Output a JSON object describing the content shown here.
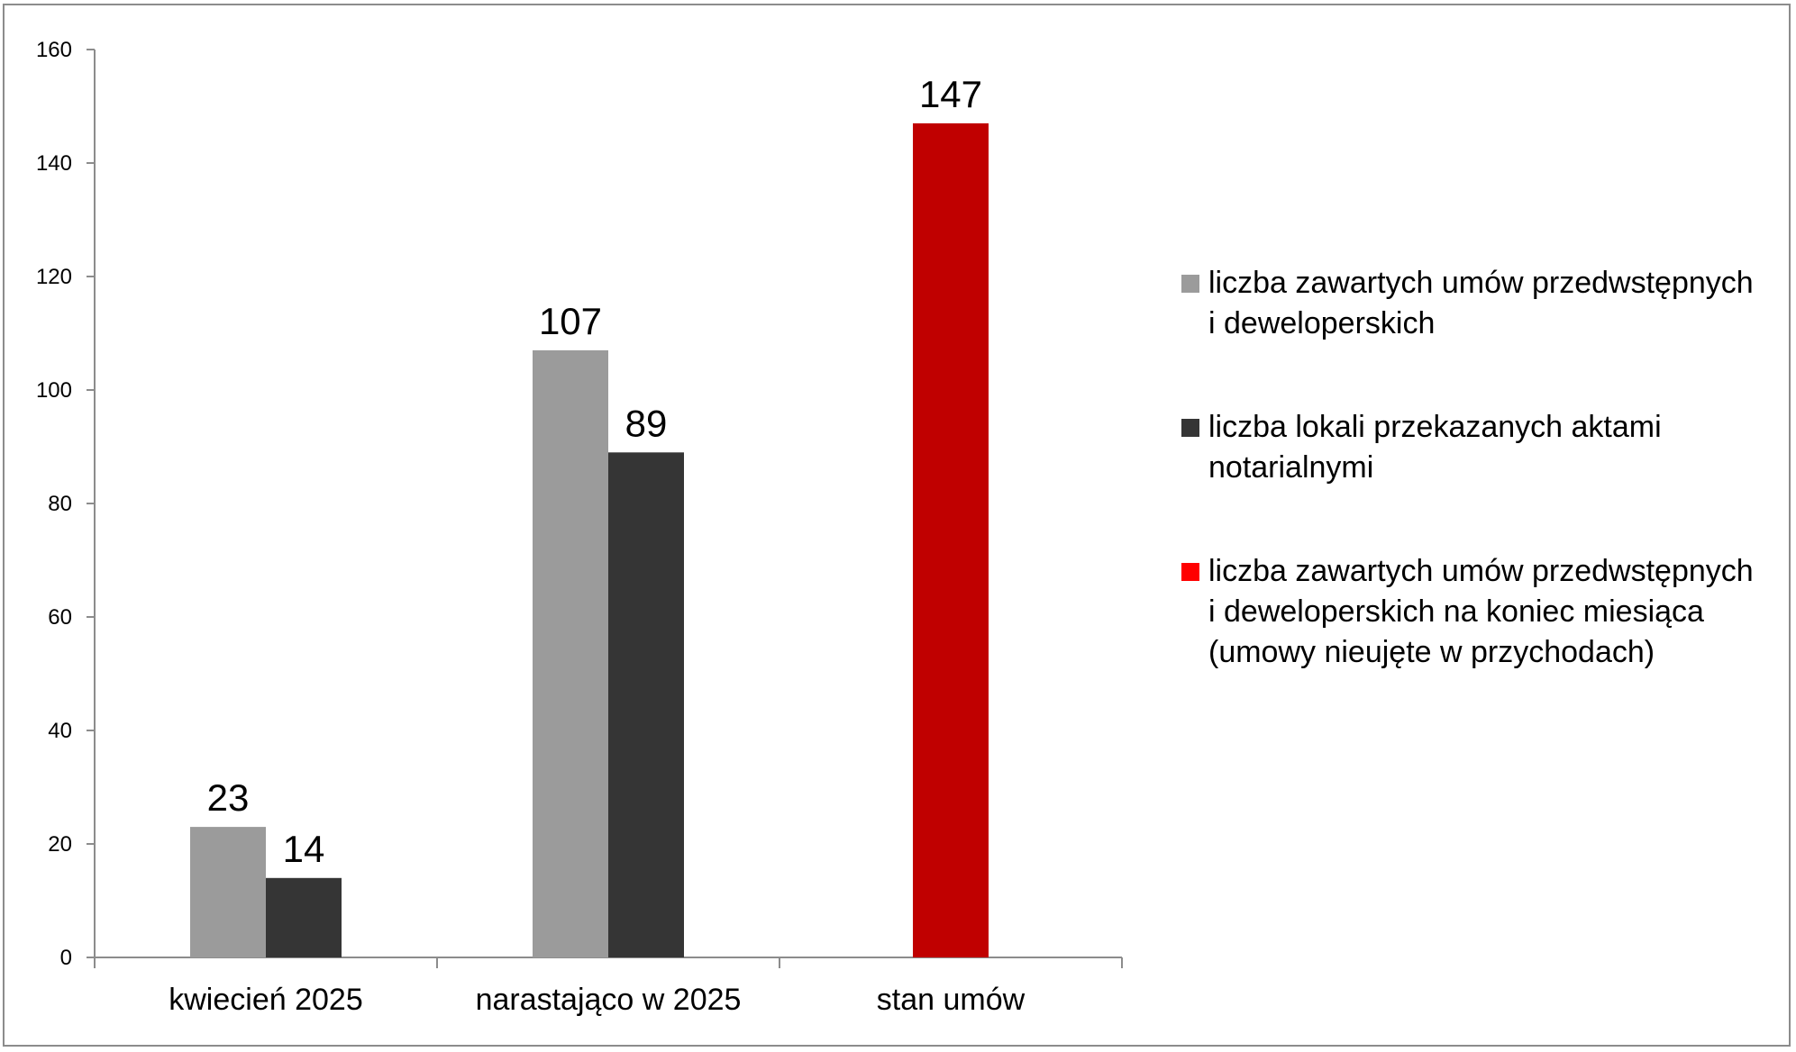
{
  "chart_data": {
    "type": "bar",
    "categories": [
      "kwiecień 2025",
      "narastająco w 2025",
      "stan umów"
    ],
    "series": [
      {
        "name": "liczba zawartych umów przedwstępnych i deweloperskich",
        "values": [
          23,
          107,
          null
        ],
        "color": "#9b9b9b"
      },
      {
        "name": "liczba lokali przekazanych aktami notarialnymi",
        "values": [
          14,
          89,
          null
        ],
        "color": "#353535"
      },
      {
        "name": "liczba zawartych umów przedwstępnych i deweloperskich na koniec miesiąca (umowy nieujęte w przychodach)",
        "values": [
          null,
          null,
          147
        ],
        "color": "#c00000",
        "legend_color": "#ff0000"
      }
    ],
    "ylim": [
      0,
      160
    ],
    "yticks": [
      0,
      20,
      40,
      60,
      80,
      100,
      120,
      140,
      160
    ],
    "grid": false,
    "legend_position": "right",
    "data_labels": true
  }
}
